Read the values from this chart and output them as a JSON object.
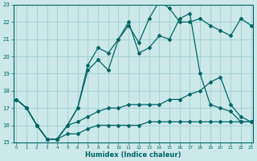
{
  "x": [
    0,
    1,
    2,
    3,
    4,
    5,
    6,
    7,
    8,
    9,
    10,
    11,
    12,
    13,
    14,
    15,
    16,
    17,
    18,
    19,
    20,
    21,
    22,
    23
  ],
  "y_jagged": [
    17.5,
    17.0,
    16.0,
    15.2,
    15.2,
    16.0,
    17.0,
    19.2,
    19.8,
    19.2,
    21.0,
    21.8,
    20.8,
    22.2,
    23.2,
    22.8,
    22.0,
    22.0,
    22.2,
    21.8,
    21.5,
    21.2,
    22.2,
    21.8
  ],
  "y_envelope": [
    17.5,
    17.0,
    16.0,
    15.2,
    15.2,
    16.0,
    17.0,
    19.5,
    20.5,
    20.2,
    21.0,
    22.0,
    20.2,
    20.5,
    21.2,
    21.0,
    22.2,
    22.5,
    19.0,
    17.2,
    17.0,
    16.8,
    16.2,
    16.2
  ],
  "y_mid": [
    17.5,
    17.0,
    16.0,
    15.2,
    15.2,
    16.0,
    16.2,
    16.5,
    16.8,
    17.0,
    17.0,
    17.2,
    17.2,
    17.2,
    17.2,
    17.5,
    17.5,
    17.8,
    18.0,
    18.5,
    18.8,
    17.2,
    16.5,
    16.2
  ],
  "y_flat": [
    17.5,
    17.0,
    16.0,
    15.2,
    15.2,
    15.5,
    15.5,
    15.8,
    16.0,
    16.0,
    16.0,
    16.0,
    16.0,
    16.2,
    16.2,
    16.2,
    16.2,
    16.2,
    16.2,
    16.2,
    16.2,
    16.2,
    16.2,
    16.2
  ],
  "background_color": "#cce8e8",
  "grid_color": "#99cccc",
  "line_color": "#006666",
  "xlabel": "Humidex (Indice chaleur)",
  "ylim": [
    15,
    23
  ],
  "xlim": [
    -0.5,
    23
  ],
  "yticks": [
    15,
    16,
    17,
    18,
    19,
    20,
    21,
    22,
    23
  ],
  "xticks": [
    0,
    1,
    2,
    3,
    4,
    5,
    6,
    7,
    8,
    9,
    10,
    11,
    12,
    13,
    14,
    15,
    16,
    17,
    18,
    19,
    20,
    21,
    22,
    23
  ]
}
